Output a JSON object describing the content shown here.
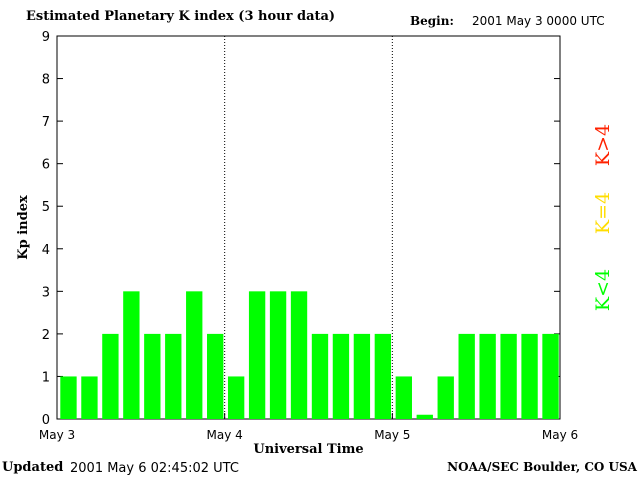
{
  "header": {
    "title": "Estimated Planetary K index (3 hour data)",
    "begin_label": "Begin:",
    "begin_value": "2001 May 3 0000 UTC"
  },
  "footer": {
    "updated_label": "Updated",
    "updated_value": "2001 May  6 02:45:02 UTC",
    "credit": "NOAA/SEC Boulder, CO USA"
  },
  "legend": {
    "items": [
      {
        "label": "K<4",
        "color": "#00ff00"
      },
      {
        "label": "K=4",
        "color": "#ffdd00"
      },
      {
        "label": "K>4",
        "color": "#ff2200"
      }
    ]
  },
  "chart_data": {
    "type": "bar",
    "title": "Estimated Planetary K index (3 hour data)",
    "xlabel": "Universal Time",
    "ylabel": "Kp index",
    "ylim": [
      0,
      9
    ],
    "yticks": [
      "0",
      "1",
      "2",
      "3",
      "4",
      "5",
      "6",
      "7",
      "8",
      "9"
    ],
    "xticks": [
      "May 3",
      "May 4",
      "May 5",
      "May 6"
    ],
    "day_separators": true,
    "bar_color": "#00ff00",
    "values": [
      1,
      1,
      2,
      3,
      2,
      2,
      3,
      2,
      1,
      3,
      3,
      3,
      2,
      2,
      2,
      2,
      1,
      0.1,
      1,
      2,
      2,
      2,
      2,
      2
    ]
  }
}
